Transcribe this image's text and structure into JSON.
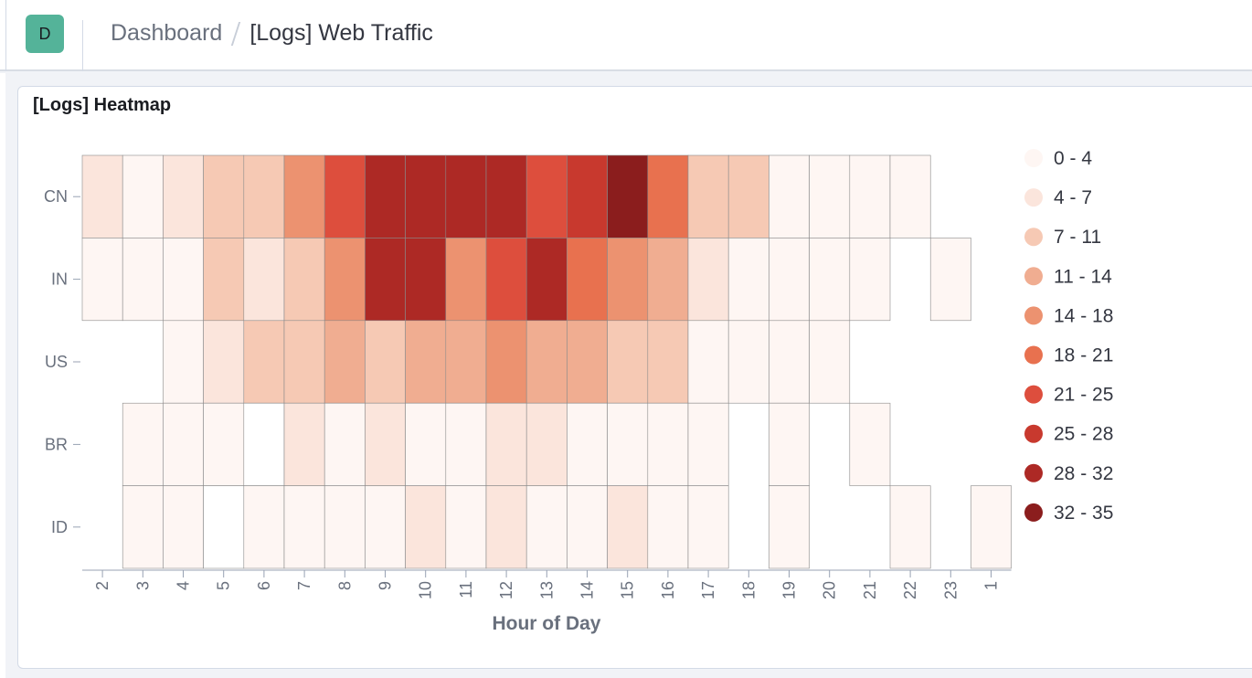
{
  "header": {
    "avatar_letter": "D",
    "breadcrumb_parent": "Dashboard",
    "breadcrumb_current": "[Logs] Web Traffic"
  },
  "panel": {
    "title": "[Logs] Heatmap"
  },
  "chart_data": {
    "type": "heatmap",
    "title": "[Logs] Heatmap",
    "xlabel": "Hour of Day",
    "ylabel": "",
    "x": [
      "2",
      "3",
      "4",
      "5",
      "6",
      "7",
      "8",
      "9",
      "10",
      "11",
      "12",
      "13",
      "14",
      "15",
      "16",
      "17",
      "18",
      "19",
      "20",
      "21",
      "22",
      "23",
      "1"
    ],
    "y": [
      "CN",
      "IN",
      "US",
      "BR",
      "ID"
    ],
    "values": [
      [
        5,
        1,
        5,
        8,
        8,
        15,
        23,
        30,
        30,
        30,
        30,
        23,
        27,
        33,
        19,
        8,
        8,
        2,
        2,
        2,
        2,
        null,
        null
      ],
      [
        2,
        2,
        2,
        8,
        5,
        8,
        15,
        30,
        30,
        15,
        23,
        30,
        19,
        15,
        12,
        5,
        2,
        2,
        2,
        2,
        null,
        2,
        null
      ],
      [
        null,
        null,
        2,
        5,
        9,
        9,
        12,
        9,
        12,
        12,
        15,
        12,
        12,
        9,
        9,
        2,
        2,
        2,
        2,
        null,
        null,
        null,
        null
      ],
      [
        null,
        2,
        2,
        2,
        0,
        5,
        2,
        5,
        2,
        2,
        5,
        5,
        2,
        2,
        2,
        2,
        null,
        2,
        null,
        2,
        null,
        null,
        null
      ],
      [
        null,
        2,
        2,
        0,
        2,
        2,
        2,
        2,
        5,
        2,
        5,
        2,
        2,
        5,
        2,
        2,
        null,
        2,
        null,
        null,
        2,
        null,
        2
      ]
    ],
    "legend": {
      "position": "right",
      "ranges": [
        "0 - 4",
        "4 - 7",
        "7 - 11",
        "11 - 14",
        "14 - 18",
        "18 - 21",
        "21 - 25",
        "25 - 28",
        "28 - 32",
        "32 - 35"
      ],
      "colors": [
        "#fef6f3",
        "#fbe5dc",
        "#f6c9b4",
        "#f0ad91",
        "#ec9270",
        "#e8714f",
        "#dd4e3d",
        "#c8392e",
        "#ad2925",
        "#8b1d1d"
      ]
    },
    "white_cell_color": "#ffffff"
  }
}
